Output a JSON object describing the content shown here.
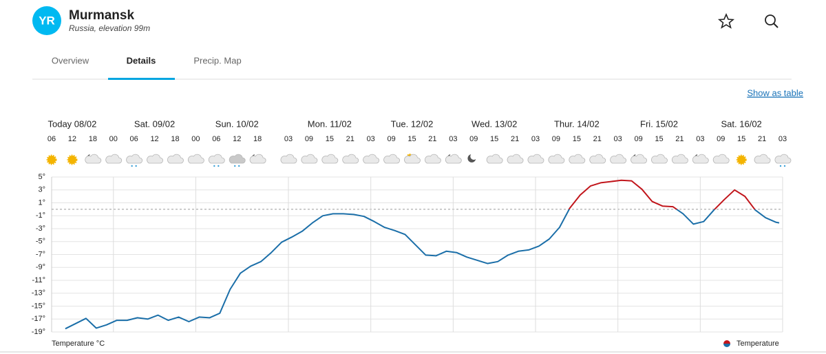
{
  "header": {
    "logo": "YR",
    "title": "Murmansk",
    "subtitle": "Russia, elevation 99m"
  },
  "tabs": [
    "Overview",
    "Details",
    "Precip. Map"
  ],
  "active_tab": "Details",
  "link": "Show as table",
  "chart_data": {
    "type": "line",
    "y_label": "Temperature °C",
    "xlim": [
      "08/02 06",
      "17/02 03"
    ],
    "day_labels": [
      {
        "value": "08/02 12",
        "label": "Today 08/02"
      },
      {
        "value": "09/02 12",
        "label": "Sat. 09/02"
      },
      {
        "value": "10/02 12",
        "label": "Sun. 10/02"
      },
      {
        "value": "11/02 15",
        "label": "Mon. 11/02"
      },
      {
        "value": "12/02 15",
        "label": "Tue. 12/02"
      },
      {
        "value": "13/02 15",
        "label": "Wed. 13/02"
      },
      {
        "value": "14/02 15",
        "label": "Thur. 14/02"
      },
      {
        "value": "15/02 15",
        "label": "Fri. 15/02"
      },
      {
        "value": "16/02 15",
        "label": "Sat. 16/02"
      }
    ],
    "xticks": [
      {
        "value": "08/02 06",
        "label": "06"
      },
      {
        "value": "08/02 12",
        "label": "12"
      },
      {
        "value": "08/02 18",
        "label": "18"
      },
      {
        "value": "09/02 00",
        "label": "00"
      },
      {
        "value": "09/02 06",
        "label": "06"
      },
      {
        "value": "09/02 12",
        "label": "12"
      },
      {
        "value": "09/02 18",
        "label": "18"
      },
      {
        "value": "10/02 00",
        "label": "00"
      },
      {
        "value": "10/02 06",
        "label": "06"
      },
      {
        "value": "10/02 12",
        "label": "12"
      },
      {
        "value": "10/02 18",
        "label": "18"
      },
      {
        "value": "11/02 03",
        "label": "03"
      },
      {
        "value": "11/02 09",
        "label": "09"
      },
      {
        "value": "11/02 15",
        "label": "15"
      },
      {
        "value": "11/02 21",
        "label": "21"
      },
      {
        "value": "12/02 03",
        "label": "03"
      },
      {
        "value": "12/02 09",
        "label": "09"
      },
      {
        "value": "12/02 15",
        "label": "15"
      },
      {
        "value": "12/02 21",
        "label": "21"
      },
      {
        "value": "13/02 03",
        "label": "03"
      },
      {
        "value": "13/02 09",
        "label": "09"
      },
      {
        "value": "13/02 15",
        "label": "15"
      },
      {
        "value": "13/02 21",
        "label": "21"
      },
      {
        "value": "14/02 03",
        "label": "03"
      },
      {
        "value": "14/02 09",
        "label": "09"
      },
      {
        "value": "14/02 15",
        "label": "15"
      },
      {
        "value": "14/02 21",
        "label": "21"
      },
      {
        "value": "15/02 03",
        "label": "03"
      },
      {
        "value": "15/02 09",
        "label": "09"
      },
      {
        "value": "15/02 15",
        "label": "15"
      },
      {
        "value": "15/02 21",
        "label": "21"
      },
      {
        "value": "16/02 03",
        "label": "03"
      },
      {
        "value": "16/02 09",
        "label": "09"
      },
      {
        "value": "16/02 15",
        "label": "15"
      },
      {
        "value": "16/02 21",
        "label": "21"
      },
      {
        "value": "17/02 03",
        "label": "03"
      }
    ],
    "ylim": [
      -19,
      5
    ],
    "yticks": [
      {
        "value": 5,
        "label": "5°"
      },
      {
        "value": 3,
        "label": "3°"
      },
      {
        "value": 1,
        "label": "1°"
      },
      {
        "value": -1,
        "label": "-1°"
      },
      {
        "value": -3,
        "label": "-3°"
      },
      {
        "value": -5,
        "label": "-5°"
      },
      {
        "value": -7,
        "label": "-7°"
      },
      {
        "value": -9,
        "label": "-9°"
      },
      {
        "value": -11,
        "label": "-11°"
      },
      {
        "value": -13,
        "label": "-13°"
      },
      {
        "value": -15,
        "label": "-15°"
      },
      {
        "value": -17,
        "label": "-17°"
      },
      {
        "value": -19,
        "label": "-19°"
      }
    ],
    "grid": true,
    "legend": "bottom-right",
    "x": [
      "08/02 10",
      "08/02 13",
      "08/02 16",
      "08/02 19",
      "08/02 22",
      "09/02 01",
      "09/02 04",
      "09/02 07",
      "09/02 10",
      "09/02 13",
      "09/02 16",
      "09/02 19",
      "09/02 22",
      "10/02 01",
      "10/02 04",
      "10/02 07",
      "10/02 10",
      "10/02 13",
      "10/02 16",
      "10/02 19",
      "10/02 22",
      "11/02 01",
      "11/02 04",
      "11/02 07",
      "11/02 10",
      "11/02 13",
      "11/02 16",
      "11/02 19",
      "11/02 22",
      "12/02 01",
      "12/02 04",
      "12/02 07",
      "12/02 10",
      "12/02 13",
      "12/02 16",
      "12/02 19",
      "12/02 22",
      "13/02 01",
      "13/02 04",
      "13/02 07",
      "13/02 10",
      "13/02 13",
      "13/02 16",
      "13/02 19",
      "13/02 22",
      "14/02 01",
      "14/02 04",
      "14/02 07",
      "14/02 10",
      "14/02 13",
      "14/02 16",
      "14/02 19",
      "14/02 22",
      "15/02 01",
      "15/02 04",
      "15/02 07",
      "15/02 10",
      "15/02 13",
      "15/02 16",
      "15/02 19",
      "15/02 22",
      "16/02 01",
      "16/02 04",
      "16/02 07",
      "16/02 10",
      "16/02 13",
      "16/02 16",
      "16/02 19",
      "16/02 22",
      "17/02 01",
      "17/02 02"
    ],
    "series": [
      {
        "name": "Temperature",
        "color": "#1a6ea8",
        "warm_color": "#c1151b",
        "values": [
          -18.5,
          -17.7,
          -16.9,
          -18.4,
          -17.9,
          -17.2,
          -17.2,
          -16.8,
          -17.0,
          -16.4,
          -17.2,
          -16.7,
          -17.4,
          -16.7,
          -16.8,
          -16.1,
          -12.4,
          -9.9,
          -8.8,
          -8.1,
          -6.7,
          -5.1,
          -4.3,
          -3.4,
          -2.1,
          -1.0,
          -0.7,
          -0.7,
          -0.8,
          -1.1,
          -1.9,
          -2.8,
          -3.3,
          -3.9,
          -5.5,
          -7.1,
          -7.2,
          -6.5,
          -6.7,
          -7.4,
          -7.9,
          -8.4,
          -8.1,
          -7.1,
          -6.5,
          -6.3,
          -5.7,
          -4.6,
          -2.8,
          0.2,
          2.2,
          3.6,
          4.1,
          4.3,
          4.5,
          4.4,
          3.1,
          1.2,
          0.5,
          0.4,
          -0.7,
          -2.3,
          -1.9,
          -0.1,
          1.5,
          3.0,
          2.0,
          -0.1,
          -1.3,
          -2.0,
          -2.1
        ]
      }
    ]
  }
}
